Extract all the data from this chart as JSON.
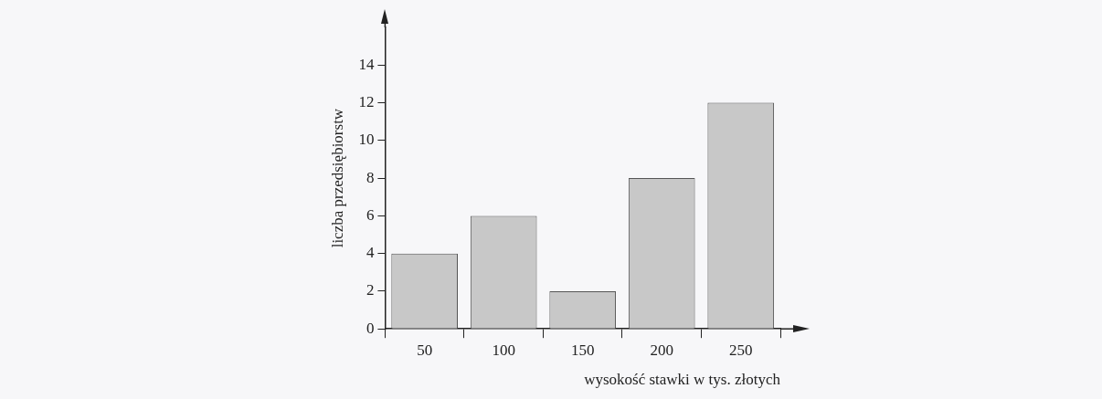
{
  "chart_data": {
    "type": "bar",
    "categories": [
      "50",
      "100",
      "150",
      "200",
      "250"
    ],
    "values": [
      4,
      6,
      2,
      8,
      12
    ],
    "color": "#c8c8c8",
    "xlabel": "wysokość stawki w tys. złotych",
    "ylabel": "liczba przedsiębiorstw",
    "ylim": [
      0,
      16
    ],
    "yticks": [
      0,
      2,
      4,
      6,
      8,
      10,
      12,
      14
    ]
  }
}
